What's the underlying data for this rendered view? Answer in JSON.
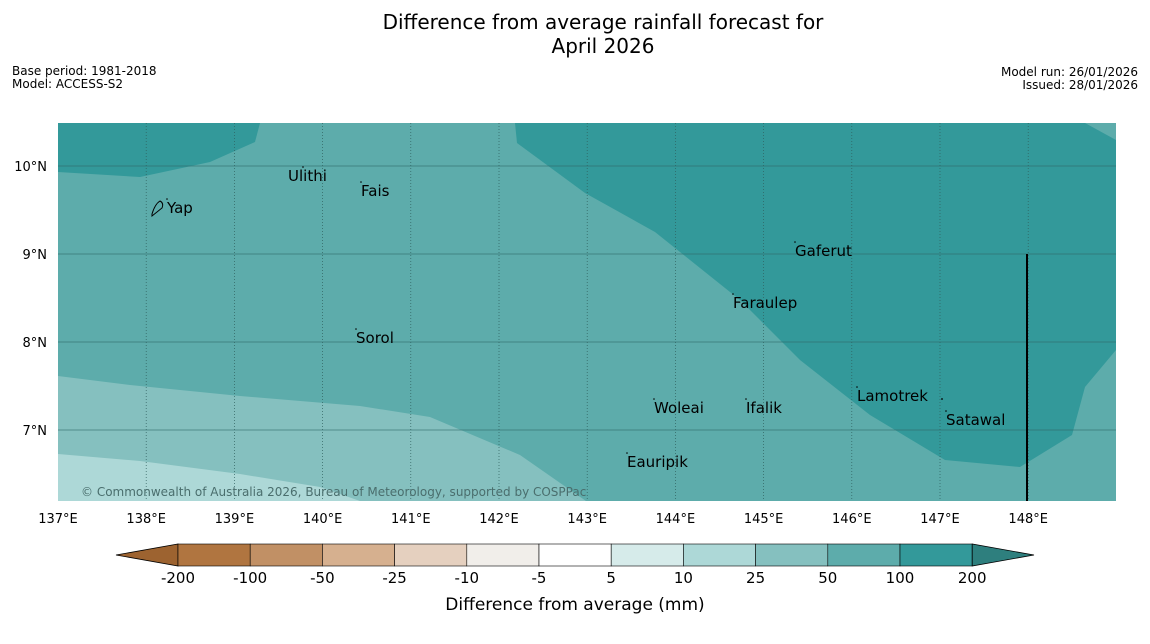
{
  "title_line1": "Difference from average rainfall forecast for",
  "title_line2": "April 2026",
  "meta": {
    "base_period": "Base period: 1981-2018",
    "model": "Model: ACCESS-S2",
    "model_run": "Model run: 26/01/2026",
    "issued": "Issued: 28/01/2026"
  },
  "lon_ticks": [
    "137°E",
    "138°E",
    "139°E",
    "140°E",
    "141°E",
    "142°E",
    "143°E",
    "144°E",
    "145°E",
    "146°E",
    "147°E",
    "148°E"
  ],
  "lat_ticks": [
    "10°N",
    "9°N",
    "8°N",
    "7°N"
  ],
  "places": [
    {
      "name": "Ulithi"
    },
    {
      "name": "Fais"
    },
    {
      "name": "Yap"
    },
    {
      "name": "Gaferut"
    },
    {
      "name": "Faraulep"
    },
    {
      "name": "Sorol"
    },
    {
      "name": "Lamotrek"
    },
    {
      "name": "Woleai"
    },
    {
      "name": "Ifalik"
    },
    {
      "name": "Satawal"
    },
    {
      "name": "Eauripik"
    }
  ],
  "copyright": "© Commonwealth of Australia 2026, Bureau of Meteorology, supported by COSPPac",
  "colorbar": {
    "ticks": [
      "-200",
      "-100",
      "-50",
      "-25",
      "-10",
      "-5",
      "5",
      "10",
      "25",
      "50",
      "100",
      "200"
    ],
    "colors": [
      "#b07540",
      "#c19065",
      "#d6b08f",
      "#e5d0bf",
      "#f1eeea",
      "#ffffff",
      "#d6ebea",
      "#add8d7",
      "#85c0bf",
      "#5dacab",
      "#33999a"
    ],
    "low_extend_color": "#9d6330",
    "high_extend_color": "#2e7f7e",
    "label": "Difference from average (mm)"
  }
}
